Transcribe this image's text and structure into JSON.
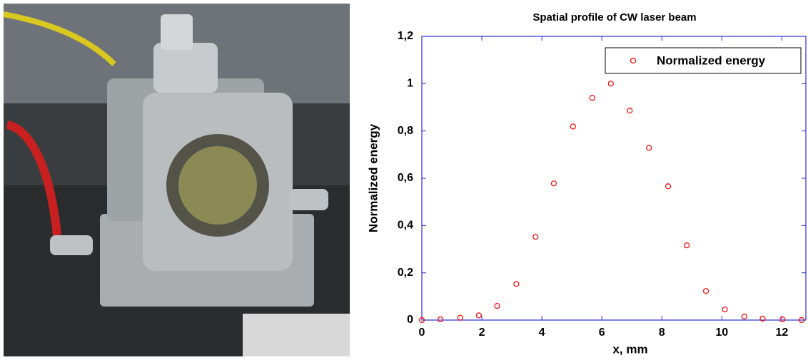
{
  "chart_data": {
    "type": "scatter",
    "title": "Spatial profile of CW laser beam",
    "xlabel": "x, mm",
    "ylabel": "Normalized energy",
    "series": [
      {
        "name": "Normalized energy",
        "color": "#ff0000",
        "x": [
          0,
          0.62,
          1.28,
          1.9,
          2.51,
          3.15,
          3.79,
          4.4,
          5.04,
          5.68,
          6.3,
          6.93,
          7.57,
          8.21,
          8.83,
          9.47,
          10.1,
          10.75,
          11.36,
          12.02,
          12.66
        ],
        "values": [
          0,
          0.003,
          0.01,
          0.02,
          0.06,
          0.153,
          0.352,
          0.578,
          0.819,
          0.94,
          1.0,
          0.886,
          0.729,
          0.566,
          0.316,
          0.123,
          0.045,
          0.015,
          0.006,
          0.003,
          0
        ]
      }
    ],
    "xlim": [
      0,
      12.8
    ],
    "xticks": [
      0,
      2,
      4,
      6,
      8,
      10,
      12
    ],
    "ylim": [
      0,
      1.2
    ],
    "yticks": [
      0,
      {
        "value": 0.2,
        "label": "0,2"
      },
      {
        "value": 0.4,
        "label": "0,4"
      },
      {
        "value": 0.6,
        "label": "0,6"
      },
      {
        "value": 0.8,
        "label": "0,8"
      },
      1,
      {
        "value": 1.2,
        "label": "1,2"
      }
    ],
    "legend": "upper right",
    "axis_color": "#2b2bd6"
  }
}
